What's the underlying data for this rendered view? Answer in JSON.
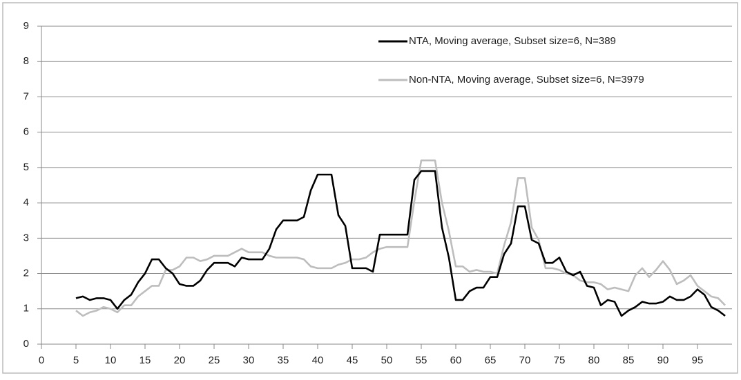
{
  "chart_data": {
    "type": "line",
    "x": [
      5,
      6,
      7,
      8,
      9,
      10,
      11,
      12,
      13,
      14,
      15,
      16,
      17,
      18,
      19,
      20,
      21,
      22,
      23,
      24,
      25,
      26,
      27,
      28,
      29,
      30,
      31,
      32,
      33,
      34,
      35,
      36,
      37,
      38,
      39,
      40,
      41,
      42,
      43,
      44,
      45,
      46,
      47,
      48,
      49,
      50,
      51,
      52,
      53,
      54,
      55,
      56,
      57,
      58,
      59,
      60,
      61,
      62,
      63,
      64,
      65,
      66,
      67,
      68,
      69,
      70,
      71,
      72,
      73,
      74,
      75,
      76,
      77,
      78,
      79,
      80,
      81,
      82,
      83,
      84,
      85,
      86,
      87,
      88,
      89,
      90,
      91,
      92,
      93,
      94,
      95,
      96,
      97,
      98,
      99
    ],
    "series": [
      {
        "name": "NTA, Moving average, Subset size=6, N=389",
        "color": "#000000",
        "values": [
          1.3,
          1.35,
          1.25,
          1.3,
          1.3,
          1.25,
          1.0,
          1.25,
          1.4,
          1.75,
          2.0,
          2.4,
          2.4,
          2.15,
          2.0,
          1.7,
          1.65,
          1.65,
          1.8,
          2.1,
          2.3,
          2.3,
          2.3,
          2.2,
          2.45,
          2.4,
          2.4,
          2.4,
          2.7,
          3.25,
          3.5,
          3.5,
          3.5,
          3.6,
          4.35,
          4.8,
          4.8,
          4.8,
          3.65,
          3.35,
          2.15,
          2.15,
          2.15,
          2.05,
          3.1,
          3.1,
          3.1,
          3.1,
          3.1,
          4.65,
          4.9,
          4.9,
          4.9,
          3.3,
          2.45,
          1.25,
          1.25,
          1.5,
          1.6,
          1.6,
          1.9,
          1.9,
          2.55,
          2.85,
          3.9,
          3.9,
          2.95,
          2.85,
          2.3,
          2.3,
          2.45,
          2.05,
          1.95,
          2.05,
          1.65,
          1.6,
          1.1,
          1.25,
          1.2,
          0.8,
          0.95,
          1.05,
          1.2,
          1.15,
          1.15,
          1.2,
          1.35,
          1.25,
          1.25,
          1.35,
          1.55,
          1.4,
          1.05,
          0.95,
          0.8
        ]
      },
      {
        "name": "Non-NTA, Moving average, Subset size=6, N=3979",
        "color": "#bdbdbd",
        "values": [
          0.95,
          0.8,
          0.9,
          0.95,
          1.05,
          1.0,
          0.9,
          1.1,
          1.1,
          1.35,
          1.5,
          1.65,
          1.65,
          2.1,
          2.1,
          2.2,
          2.45,
          2.45,
          2.35,
          2.4,
          2.5,
          2.5,
          2.5,
          2.6,
          2.7,
          2.6,
          2.6,
          2.6,
          2.5,
          2.45,
          2.45,
          2.45,
          2.45,
          2.4,
          2.2,
          2.15,
          2.15,
          2.15,
          2.25,
          2.3,
          2.4,
          2.4,
          2.45,
          2.6,
          2.7,
          2.75,
          2.75,
          2.75,
          2.75,
          4.05,
          5.2,
          5.2,
          5.2,
          4.0,
          3.2,
          2.2,
          2.2,
          2.05,
          2.1,
          2.05,
          2.05,
          2.0,
          2.8,
          3.45,
          4.7,
          4.7,
          3.3,
          2.95,
          2.15,
          2.15,
          2.1,
          2.0,
          1.95,
          1.8,
          1.75,
          1.75,
          1.7,
          1.55,
          1.6,
          1.55,
          1.5,
          1.95,
          2.15,
          1.9,
          2.1,
          2.35,
          2.1,
          1.7,
          1.8,
          1.95,
          1.65,
          1.5,
          1.35,
          1.3,
          1.1
        ]
      }
    ],
    "xlim": [
      0,
      100
    ],
    "xticks": [
      0,
      5,
      10,
      15,
      20,
      25,
      30,
      35,
      40,
      45,
      50,
      55,
      60,
      65,
      70,
      75,
      80,
      85,
      90,
      95
    ],
    "ylim": [
      0,
      9
    ],
    "yticks": [
      0,
      1,
      2,
      3,
      4,
      5,
      6,
      7,
      8,
      9
    ],
    "grid": true,
    "legend": "top-right"
  }
}
